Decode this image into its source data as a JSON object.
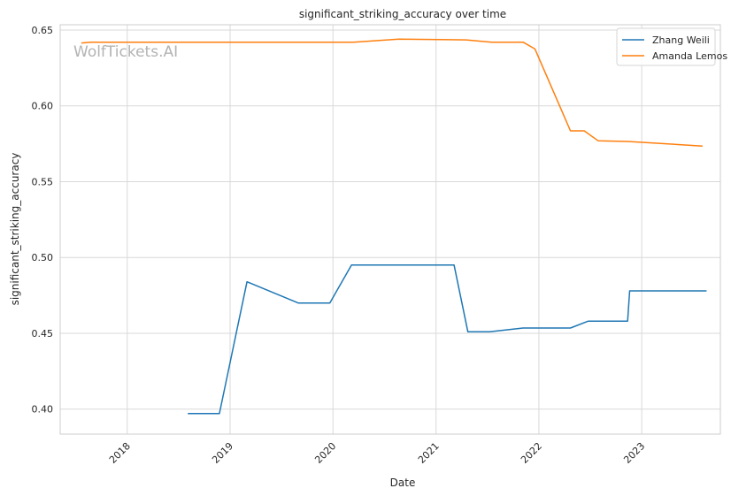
{
  "chart_data": {
    "type": "line",
    "title": "significant_striking_accuracy over time",
    "xlabel": "Date",
    "ylabel": "significant_striking_accuracy",
    "watermark": "WolfTickets.AI",
    "x_ticks": [
      "2018",
      "2019",
      "2020",
      "2021",
      "2022",
      "2023"
    ],
    "y_ticks": [
      "0.40",
      "0.45",
      "0.50",
      "0.55",
      "0.60",
      "0.65"
    ],
    "xlim": [
      "2017-05-08",
      "2023-10-07"
    ],
    "ylim": [
      0.3835,
      0.6535
    ],
    "grid": true,
    "legend_position": "top-right",
    "series": [
      {
        "name": "Zhang Weili",
        "color": "#1f77b4",
        "points": [
          [
            "2018-08-04",
            0.397
          ],
          [
            "2018-11-24",
            0.397
          ],
          [
            "2019-03-02",
            0.484
          ],
          [
            "2019-08-31",
            0.47
          ],
          [
            "2019-12-21",
            0.47
          ],
          [
            "2020-03-07",
            0.495
          ],
          [
            "2021-03-06",
            0.495
          ],
          [
            "2021-04-24",
            0.451
          ],
          [
            "2021-07-10",
            0.451
          ],
          [
            "2021-11-06",
            0.4535
          ],
          [
            "2022-04-23",
            0.4535
          ],
          [
            "2022-06-25",
            0.458
          ],
          [
            "2022-11-12",
            0.458
          ],
          [
            "2022-11-19",
            0.478
          ],
          [
            "2023-08-19",
            0.478
          ]
        ]
      },
      {
        "name": "Amanda Lemos",
        "color": "#ff7f0e",
        "points": [
          [
            "2017-07-22",
            0.6415
          ],
          [
            "2017-08-26",
            0.642
          ],
          [
            "2020-03-14",
            0.642
          ],
          [
            "2020-08-22",
            0.644
          ],
          [
            "2021-04-17",
            0.6435
          ],
          [
            "2021-07-17",
            0.642
          ],
          [
            "2021-11-06",
            0.642
          ],
          [
            "2021-12-18",
            0.6375
          ],
          [
            "2022-04-23",
            0.5835
          ],
          [
            "2022-06-11",
            0.5835
          ],
          [
            "2022-07-30",
            0.577
          ],
          [
            "2022-11-12",
            0.5765
          ],
          [
            "2023-08-05",
            0.5735
          ]
        ]
      }
    ]
  }
}
